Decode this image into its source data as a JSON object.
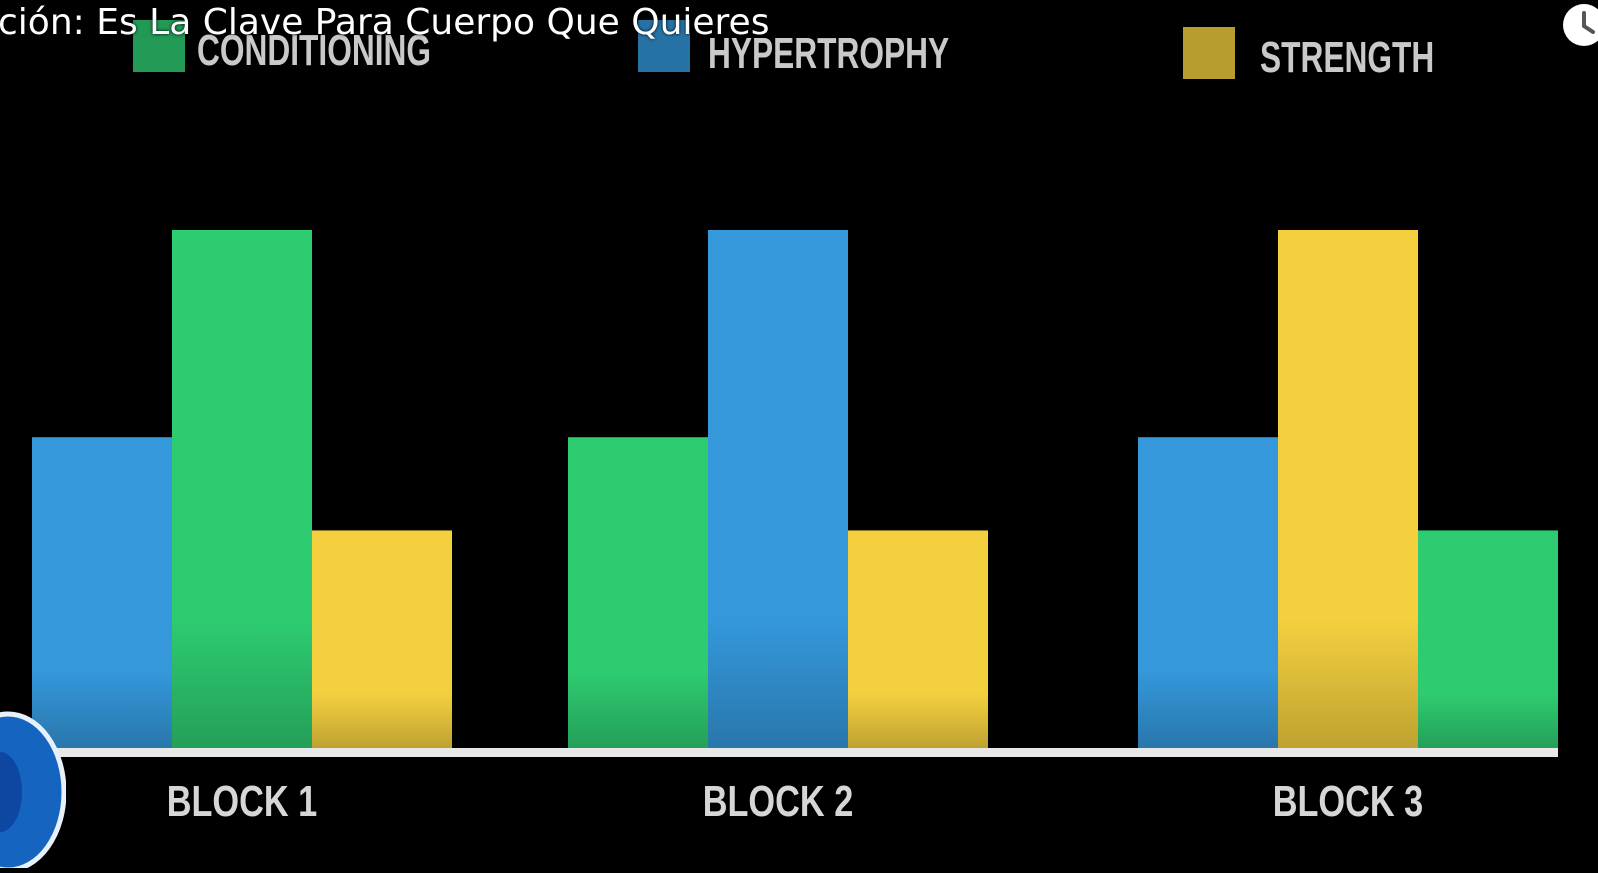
{
  "video": {
    "title": "ción: Es La Clave Para Cuerpo Que Quieres",
    "watch_later_icon": "clock-icon",
    "channel_badge_icon": "channel-logo-icon"
  },
  "colors": {
    "background": "#000000",
    "baseline": "#e8e8e8",
    "tick_text": "#d6d6d6",
    "legend_text": "#c9c9c9"
  },
  "chart_data": {
    "type": "bar",
    "title": "",
    "xlabel": "",
    "ylabel": "",
    "grid": false,
    "legend_position": "top",
    "ylim": [
      0,
      100
    ],
    "categories": [
      "BLOCK 1",
      "BLOCK 2",
      "BLOCK 3"
    ],
    "legend": [
      {
        "name": "CONDITIONING",
        "color": "#2ecc71"
      },
      {
        "name": "HYPERTROPHY",
        "color": "#3498db"
      },
      {
        "name": "STRENGTH",
        "color": "#f4d03f"
      }
    ],
    "groups": [
      {
        "category": "BLOCK 1",
        "bars": [
          {
            "series": "HYPERTROPHY",
            "value": 60
          },
          {
            "series": "CONDITIONING",
            "value": 100
          },
          {
            "series": "STRENGTH",
            "value": 42
          }
        ]
      },
      {
        "category": "BLOCK 2",
        "bars": [
          {
            "series": "CONDITIONING",
            "value": 60
          },
          {
            "series": "HYPERTROPHY",
            "value": 100
          },
          {
            "series": "STRENGTH",
            "value": 42
          }
        ]
      },
      {
        "category": "BLOCK 3",
        "bars": [
          {
            "series": "HYPERTROPHY",
            "value": 60
          },
          {
            "series": "STRENGTH",
            "value": 100
          },
          {
            "series": "CONDITIONING",
            "value": 42
          }
        ]
      }
    ]
  }
}
